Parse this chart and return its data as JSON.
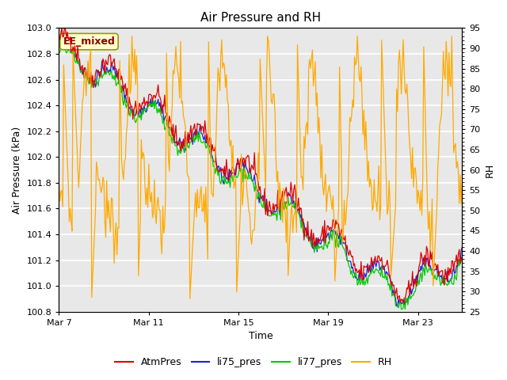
{
  "title": "Air Pressure and RH",
  "xlabel": "Time",
  "ylabel_left": "Air Pressure (kPa)",
  "ylabel_right": "RH",
  "ylim_left": [
    100.8,
    103.0
  ],
  "ylim_right": [
    25,
    95
  ],
  "yticks_left": [
    100.8,
    101.0,
    101.2,
    101.4,
    101.6,
    101.8,
    102.0,
    102.2,
    102.4,
    102.6,
    102.8,
    103.0
  ],
  "yticks_right": [
    25,
    30,
    35,
    40,
    45,
    50,
    55,
    60,
    65,
    70,
    75,
    80,
    85,
    90,
    95
  ],
  "xtick_labels": [
    "Mar 7",
    "Mar 11",
    "Mar 15",
    "Mar 19",
    "Mar 23"
  ],
  "xtick_positions": [
    0,
    96,
    192,
    288,
    384
  ],
  "n_points": 432,
  "colors": {
    "AtmPres": "#dd0000",
    "li75_pres": "#2222cc",
    "li77_pres": "#00cc00",
    "RH": "#ffaa00"
  },
  "legend_labels": [
    "AtmPres",
    "li75_pres",
    "li77_pres",
    "RH"
  ],
  "annotation_text": "EE_mixed",
  "annotation_color": "#8b0000",
  "annotation_bg": "#ffffcc",
  "annotation_border": "#999900",
  "fig_facecolor": "#ffffff",
  "plot_facecolor": "#e8e8e8",
  "grid_color": "#d8d8d8",
  "title_fontsize": 11,
  "label_fontsize": 9,
  "tick_fontsize": 8
}
